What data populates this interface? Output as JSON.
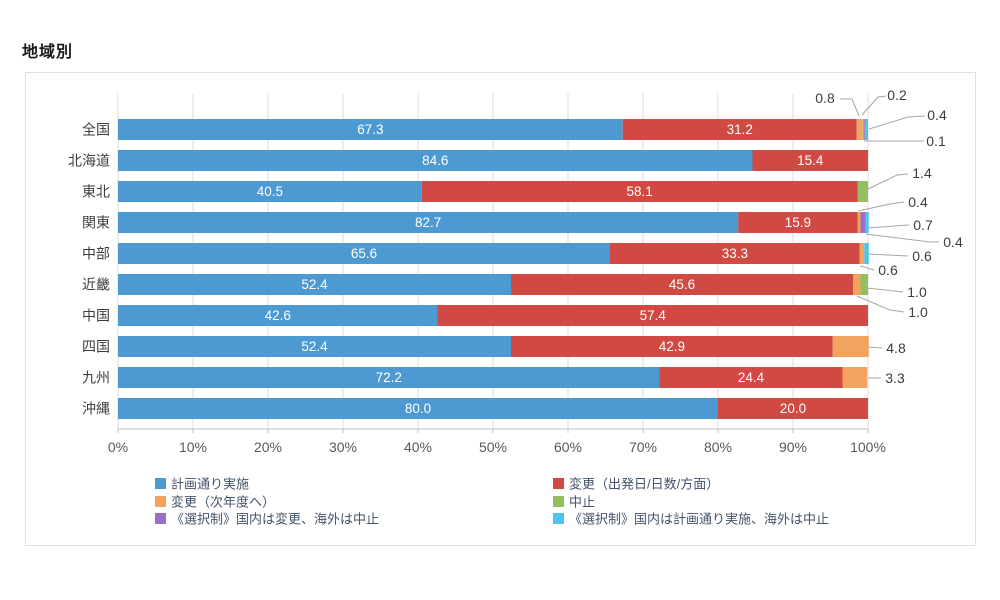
{
  "title": "地域別",
  "chart_data": {
    "type": "bar",
    "orientation": "horizontal",
    "stacked": true,
    "unit": "%",
    "grid": true,
    "legend_position": "bottom",
    "x_axis": {
      "min": 0,
      "max": 100,
      "ticks": [
        "0%",
        "10%",
        "20%",
        "30%",
        "40%",
        "50%",
        "60%",
        "70%",
        "80%",
        "90%",
        "100%"
      ]
    },
    "categories": [
      "全国",
      "北海道",
      "東北",
      "関東",
      "中部",
      "近畿",
      "中国",
      "四国",
      "九州",
      "沖縄"
    ],
    "series": [
      {
        "key": "as-planned",
        "name": "計画通り実施",
        "color": "#4d9ad3",
        "labels_inside": true,
        "values": [
          67.3,
          84.6,
          40.5,
          82.7,
          65.6,
          52.4,
          42.6,
          52.4,
          72.2,
          80.0
        ]
      },
      {
        "key": "changed-date",
        "name": "変更（出発日/日数/方面）",
        "color": "#d04a43",
        "labels_inside": true,
        "values": [
          31.2,
          15.4,
          58.1,
          15.9,
          33.3,
          45.6,
          57.4,
          42.9,
          24.4,
          20.0
        ]
      },
      {
        "key": "changed-next-year",
        "name": "変更（次年度へ）",
        "color": "#f2a45f",
        "labels_inside": false,
        "values": [
          0.8,
          0,
          0,
          0.4,
          0.6,
          1.0,
          0,
          4.8,
          3.3,
          0
        ]
      },
      {
        "key": "cancelled",
        "name": "中止",
        "color": "#93bf60",
        "labels_inside": false,
        "values": [
          0.2,
          0,
          1.4,
          0,
          0,
          1.0,
          0,
          0,
          0,
          0
        ]
      },
      {
        "key": "optional-domestic-changed",
        "name": "《選択制》国内は変更、海外は中止",
        "color": "#9a6fc5",
        "labels_inside": false,
        "values": [
          0.1,
          0,
          0,
          0.7,
          0,
          0,
          0,
          0,
          0,
          0
        ]
      },
      {
        "key": "optional-domestic-as-planned",
        "name": "《選択制》国内は計画通り実施、海外は中止",
        "color": "#4fc3ef",
        "labels_inside": false,
        "values": [
          0.4,
          0,
          0,
          0.4,
          0.6,
          0,
          0,
          0,
          0,
          0
        ]
      }
    ],
    "callouts": [
      {
        "category": "全国",
        "series": "changed-next-year",
        "value": "0.8"
      },
      {
        "category": "全国",
        "series": "cancelled",
        "value": "0.2"
      },
      {
        "category": "全国",
        "series": "optional-domestic-as-planned",
        "value": "0.4"
      },
      {
        "category": "全国",
        "series": "optional-domestic-changed",
        "value": "0.1"
      },
      {
        "category": "東北",
        "series": "cancelled",
        "value": "1.4"
      },
      {
        "category": "関東",
        "series": "changed-next-year",
        "value": "0.4"
      },
      {
        "category": "関東",
        "series": "optional-domestic-changed",
        "value": "0.7"
      },
      {
        "category": "関東",
        "series": "optional-domestic-as-planned",
        "value": "0.4"
      },
      {
        "category": "中部",
        "series": "optional-domestic-as-planned",
        "value": "0.6"
      },
      {
        "category": "中部",
        "series": "changed-next-year",
        "value": "0.6"
      },
      {
        "category": "近畿",
        "series": "cancelled",
        "value": "1.0"
      },
      {
        "category": "近畿",
        "series": "changed-next-year",
        "value": "1.0"
      },
      {
        "category": "四国",
        "series": "changed-next-year",
        "value": "4.8"
      },
      {
        "category": "九州",
        "series": "changed-next-year",
        "value": "3.3"
      }
    ],
    "legend_columns": [
      [
        "計画通り実施",
        "変更（次年度へ）",
        "《選択制》国内は変更、海外は中止"
      ],
      [
        "変更（出発日/日数/方面）",
        "中止",
        "《選択制》国内は計画通り実施、海外は中止"
      ]
    ],
    "colors": {
      "grid": "#dadde0",
      "axis_line": "#bfbfbf",
      "axis_text": "#595959",
      "category_text": "#3d3d3d",
      "bar_value_text": "#ffffff",
      "callout_text": "#3d3d3d",
      "leader_line": "#a6a6a6",
      "legend_text": "#44546a",
      "panel_border": "#dcdfe3"
    }
  }
}
